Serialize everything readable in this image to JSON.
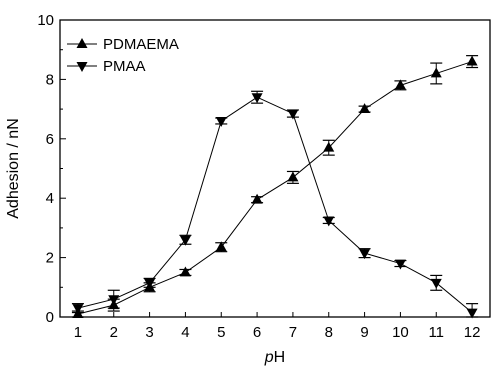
{
  "chart_data": {
    "type": "line",
    "title": "",
    "xlabel_prefix": "p",
    "xlabel_suffix": "H",
    "ylabel": "Adhesion / nN",
    "xlim": [
      0.5,
      12.5
    ],
    "ylim": [
      0,
      10
    ],
    "xticks": [
      1,
      2,
      3,
      4,
      5,
      6,
      7,
      8,
      9,
      10,
      11,
      12
    ],
    "yticks": [
      0,
      2,
      4,
      6,
      8,
      10
    ],
    "grid": false,
    "legend_position": "top-left",
    "series": [
      {
        "name": "PDMAEMA",
        "marker": "triangle-up",
        "color": "#000000",
        "x": [
          1,
          2,
          3,
          4,
          5,
          6,
          7,
          8,
          9,
          10,
          11,
          12
        ],
        "y": [
          0.1,
          0.4,
          1.0,
          1.5,
          2.35,
          3.95,
          4.7,
          5.7,
          7.0,
          7.8,
          8.2,
          8.6
        ],
        "err": [
          0.1,
          0.2,
          0.15,
          0.1,
          0.15,
          0.1,
          0.2,
          0.25,
          0.1,
          0.15,
          0.35,
          0.2
        ]
      },
      {
        "name": "PMAA",
        "marker": "triangle-down",
        "color": "#000000",
        "x": [
          1,
          2,
          3,
          4,
          5,
          6,
          7,
          8,
          9,
          10,
          11,
          12
        ],
        "y": [
          0.3,
          0.6,
          1.15,
          2.6,
          6.6,
          7.4,
          6.85,
          3.25,
          2.15,
          1.8,
          1.15,
          0.15
        ],
        "err": [
          0.15,
          0.3,
          0.15,
          0.15,
          0.1,
          0.2,
          0.12,
          0.1,
          0.15,
          0.1,
          0.25,
          0.3
        ]
      }
    ]
  }
}
